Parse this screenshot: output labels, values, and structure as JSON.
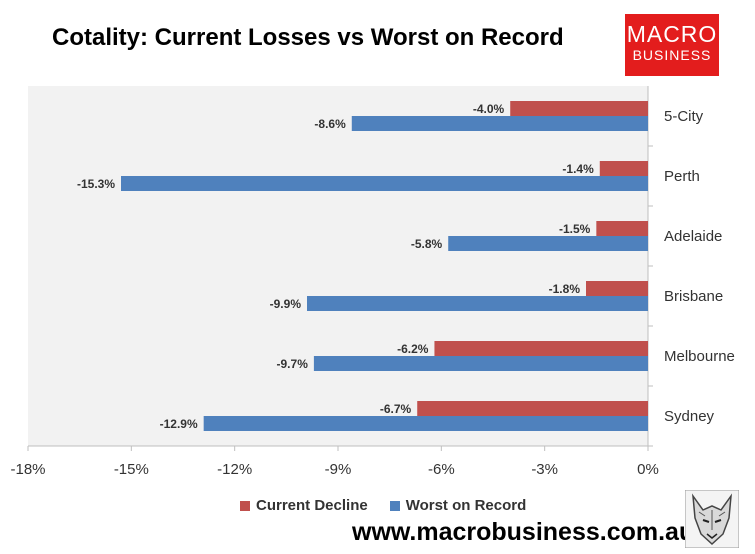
{
  "title": "Cotality: Current Losses vs Worst on Record",
  "logo": {
    "line1": "MACRO",
    "line2": "BUSINESS"
  },
  "footer_url": "www.macrobusiness.com.au",
  "colors": {
    "current": "#c0504d",
    "worst": "#4f81bd",
    "plot_bg": "#f2f2f2",
    "logo_bg": "#e31d1d"
  },
  "chart_data": {
    "type": "bar",
    "orientation": "horizontal",
    "title": "Cotality: Current Losses vs Worst on Record",
    "categories": [
      "5-City",
      "Perth",
      "Adelaide",
      "Brisbane",
      "Melbourne",
      "Sydney"
    ],
    "series": [
      {
        "name": "Current Decline",
        "values": [
          -4.0,
          -1.4,
          -1.5,
          -1.8,
          -6.2,
          -6.7
        ],
        "labels": [
          "-4.0%",
          "-1.4%",
          "-1.5%",
          "-1.8%",
          "-6.2%",
          "-6.7%"
        ]
      },
      {
        "name": "Worst on Record",
        "values": [
          -8.6,
          -15.3,
          -5.8,
          -9.9,
          -9.7,
          -12.9
        ],
        "labels": [
          "-8.6%",
          "-15.3%",
          "-5.8%",
          "-9.9%",
          "-9.7%",
          "-12.9%"
        ]
      }
    ],
    "xlim": [
      -18,
      0
    ],
    "x_ticks": [
      "-18%",
      "-15%",
      "-12%",
      "-9%",
      "-6%",
      "-3%",
      "0%"
    ],
    "x_tick_values": [
      -18,
      -15,
      -12,
      -9,
      -6,
      -3,
      0
    ],
    "legend_position": "bottom",
    "grid": false
  }
}
